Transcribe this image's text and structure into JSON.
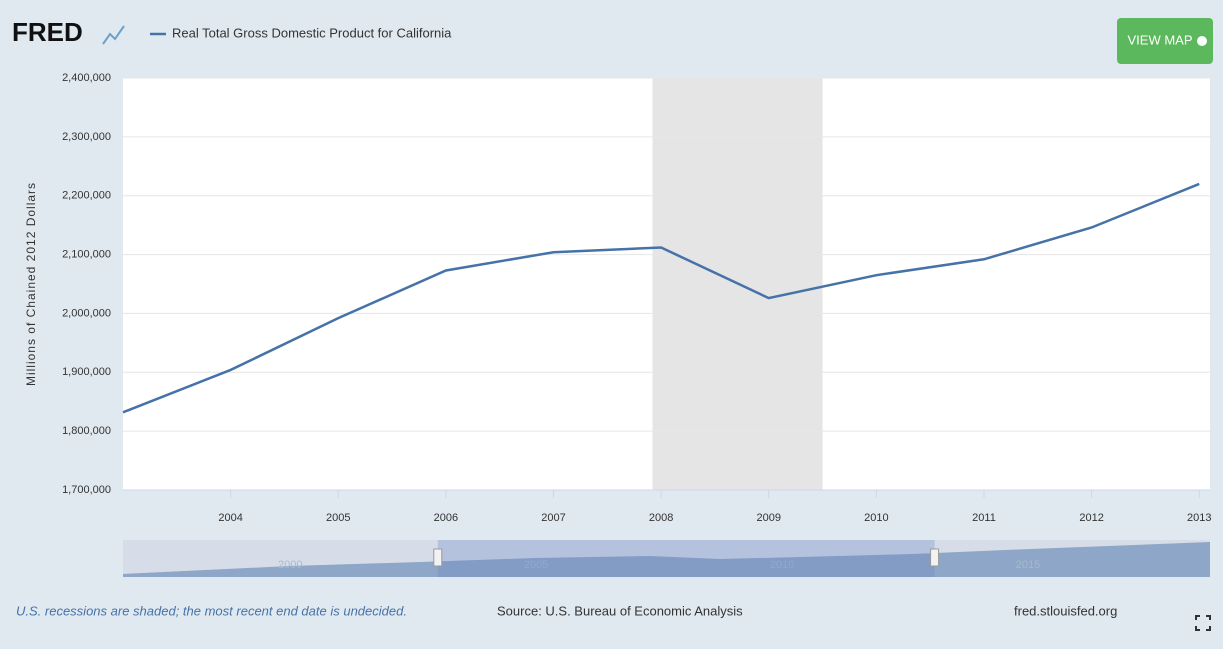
{
  "logo": "FRED",
  "button": "VIEW MAP",
  "footer": {
    "note": "U.S. recessions are shaded; the most recent end date is undecided.",
    "source": "Source: U.S. Bureau of Economic Analysis",
    "site": "fred.stlouisfed.org"
  },
  "chart_data": {
    "type": "line",
    "ylabel": "Millions of Chained 2012 Dollars",
    "x": [
      2003,
      2004,
      2005,
      2006,
      2007,
      2008,
      2009,
      2010,
      2011,
      2012,
      2013
    ],
    "series": [
      {
        "name": "Real Total Gross Domestic Product for California",
        "color": "#4572a7",
        "values": [
          1832000,
          1904000,
          1992000,
          2073000,
          2104000,
          2112000,
          2026000,
          2065000,
          2092000,
          2146000,
          2220000
        ]
      }
    ],
    "xlim": [
      2003,
      2013.1
    ],
    "xticks": [
      2004,
      2005,
      2006,
      2007,
      2008,
      2009,
      2010,
      2011,
      2012,
      2013
    ],
    "ylim": [
      1700000,
      2400000
    ],
    "yticks": [
      {
        "value": 1700000,
        "label": "1,700,000"
      },
      {
        "value": 1800000,
        "label": "1,800,000"
      },
      {
        "value": 1900000,
        "label": "1,900,000"
      },
      {
        "value": 2000000,
        "label": "2,000,000"
      },
      {
        "value": 2100000,
        "label": "2,100,000"
      },
      {
        "value": 2200000,
        "label": "2,200,000"
      },
      {
        "value": 2300000,
        "label": "2,300,000"
      },
      {
        "value": 2400000,
        "label": "2,400,000"
      }
    ],
    "grid": true,
    "recessions": [
      [
        2007.92,
        2009.5
      ]
    ],
    "navigator": {
      "xlim": [
        1996.6,
        2018.7
      ],
      "xticks": [
        2000,
        2005,
        2010,
        2015
      ]
    }
  }
}
